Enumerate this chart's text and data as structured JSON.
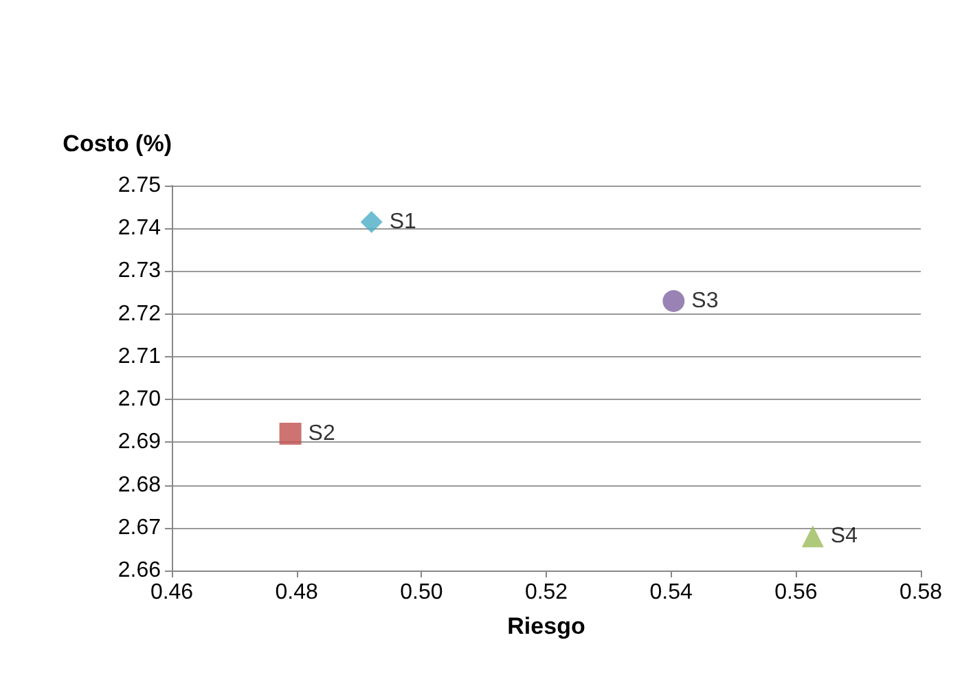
{
  "chart_data": {
    "type": "scatter",
    "xlabel": "Riesgo",
    "ylabel": "Costo (%)",
    "xlim": [
      0.46,
      0.58
    ],
    "xticks": [
      {
        "value": 0.46,
        "label": "0.46"
      },
      {
        "value": 0.48,
        "label": "0.48"
      },
      {
        "value": 0.5,
        "label": "0.50"
      },
      {
        "value": 0.52,
        "label": "0.52"
      },
      {
        "value": 0.54,
        "label": "0.54"
      },
      {
        "value": 0.56,
        "label": "0.56"
      },
      {
        "value": 0.58,
        "label": "0.58"
      }
    ],
    "ylim": [
      2.66,
      2.75
    ],
    "yticks": [
      2.66,
      2.67,
      2.68,
      2.69,
      {
        "value": 2.7,
        "label": "2.70"
      },
      2.71,
      2.72,
      2.73,
      2.74,
      2.75
    ],
    "grid": "y",
    "legend": false,
    "series": [
      {
        "name": "S1",
        "color": "#4bacc6",
        "marker": "diamond",
        "x": [
          0.492
        ],
        "values": [
          2.7415
        ]
      },
      {
        "name": "S2",
        "color": "#c0504d",
        "marker": "square",
        "x": [
          0.479
        ],
        "values": [
          2.692
        ]
      },
      {
        "name": "S3",
        "color": "#8064a2",
        "marker": "circle",
        "x": [
          0.5404
        ],
        "values": [
          2.723
        ]
      },
      {
        "name": "S4",
        "color": "#9bbb59",
        "marker": "triangle",
        "x": [
          0.5627
        ],
        "values": [
          2.668
        ]
      }
    ]
  }
}
